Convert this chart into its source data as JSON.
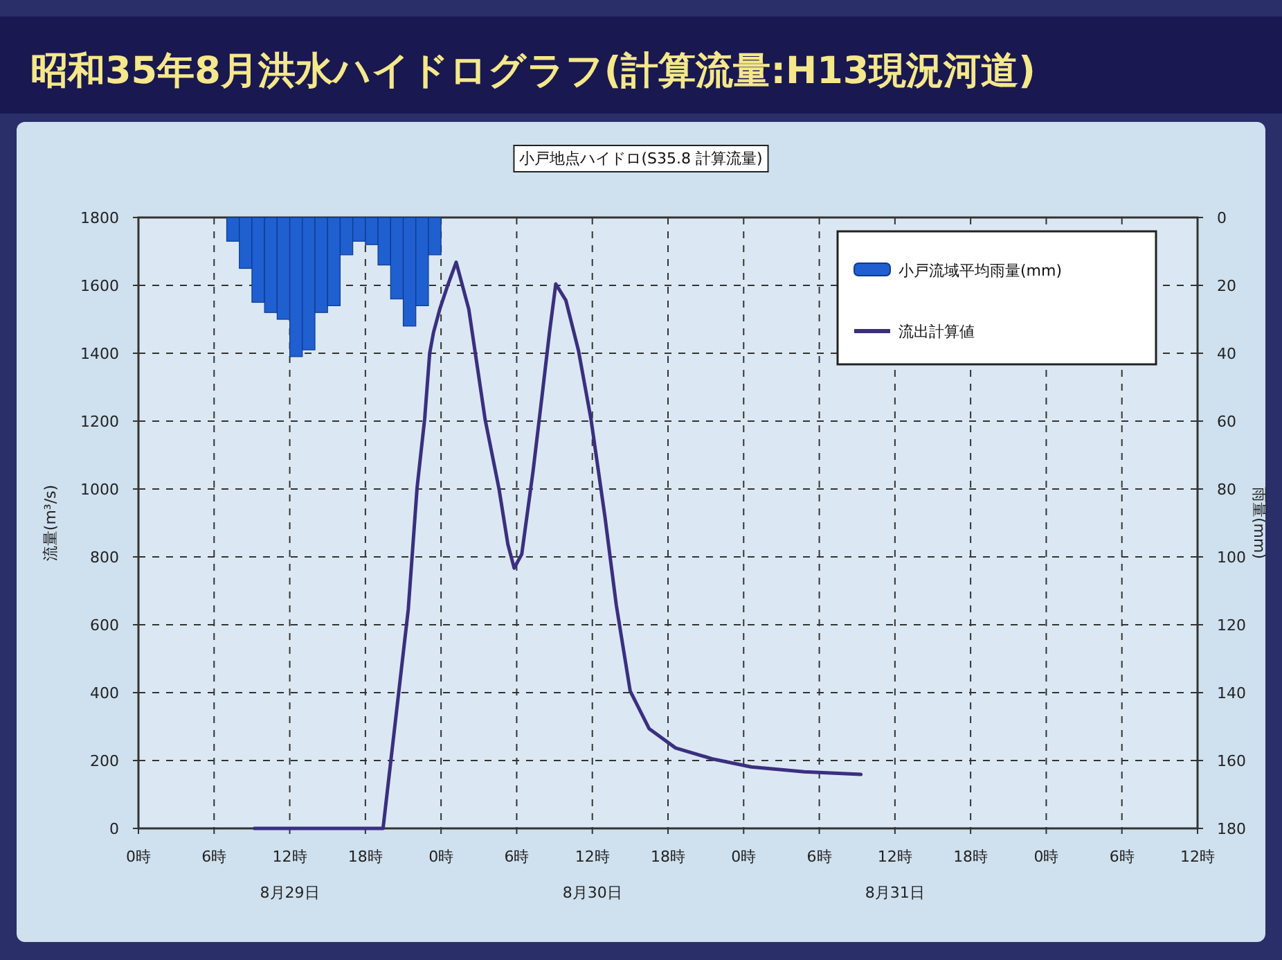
{
  "chart_data": {
    "type": "line",
    "title": "昭和35年8月洪水ハイドログラフ(計算流量:H13現況河道)",
    "subtitle": "小戸地点ハイドロ(S35.8 計算流量)",
    "ylabel": "流量(m³/s)",
    "y2label": "雨量(mm)",
    "xlim": [
      "--08-29T00:00",
      "--09-01T12:00"
    ],
    "xticks": [
      {
        "value": "--08-29T00:00",
        "label": "0時"
      },
      {
        "value": "--08-29T06:00",
        "label": "6時"
      },
      {
        "value": "--08-29T12:00",
        "label": "12時\n8月29日"
      },
      {
        "value": "--08-29T18:00",
        "label": "18時"
      },
      {
        "value": "--08-30T00:00",
        "label": "0時"
      },
      {
        "value": "--08-30T06:00",
        "label": "6時"
      },
      {
        "value": "--08-30T12:00",
        "label": "12時\n8月30日"
      },
      {
        "value": "--08-30T18:00",
        "label": "18時"
      },
      {
        "value": "--08-31T00:00",
        "label": "0時"
      },
      {
        "value": "--08-31T06:00",
        "label": "6時"
      },
      {
        "value": "--08-31T12:00",
        "label": "12時\n8月31日"
      },
      {
        "value": "--08-31T18:00",
        "label": "18時"
      },
      {
        "value": "--09-01T00:00",
        "label": "0時"
      },
      {
        "value": "--09-01T06:00",
        "label": "6時"
      },
      {
        "value": "--09-01T12:00",
        "label": "12時"
      }
    ],
    "ylim": [
      0,
      1800
    ],
    "yticks": [
      0,
      200,
      400,
      600,
      800,
      1000,
      1200,
      1400,
      1600,
      1800
    ],
    "y2lim": [
      180,
      0
    ],
    "y2ticks": [
      0,
      20,
      40,
      60,
      80,
      100,
      120,
      140,
      160,
      180
    ],
    "grid": true,
    "legend": "top right",
    "series": [
      {
        "name": "小戸流域平均雨量(mm)",
        "type": "bar",
        "axis": "y2",
        "color": "#1f5fd0",
        "x": [
          "--08-29T07:30",
          "--08-29T08:30",
          "--08-29T09:30",
          "--08-29T10:30",
          "--08-29T11:30",
          "--08-29T12:30",
          "--08-29T13:30",
          "--08-29T14:30",
          "--08-29T15:30",
          "--08-29T16:30",
          "--08-29T17:30",
          "--08-29T18:30",
          "--08-29T19:30",
          "--08-29T20:30",
          "--08-29T21:30",
          "--08-29T22:30",
          "--08-29T23:30"
        ],
        "values": [
          7,
          15,
          25,
          28,
          30,
          41,
          39,
          28,
          26,
          11,
          7,
          8,
          14,
          24,
          32,
          26,
          11
        ]
      },
      {
        "name": "流出計算値",
        "color": "#3b2f80",
        "x": [
          "--08-29T09:12",
          "--08-29T19:24",
          "--08-29T21:24",
          "--08-29T22:06",
          "--08-29T22:42",
          "--08-29T23:06",
          "--08-29T23:24",
          "--08-29T23:54",
          "--08-30T00:30",
          "--08-30T01:12",
          "--08-30T02:12",
          "--08-30T03:30",
          "--08-30T04:36",
          "--08-30T05:18",
          "--08-30T05:48",
          "--08-30T06:24",
          "--08-30T07:18",
          "--08-30T08:00",
          "--08-30T08:36",
          "--08-30T09:06",
          "--08-30T09:54",
          "--08-30T10:54",
          "--08-30T11:54",
          "--08-30T13:00",
          "--08-30T13:54",
          "--08-30T15:00",
          "--08-30T16:30",
          "--08-30T18:36",
          "--08-30T21:36",
          "--08-31T00:36",
          "--08-31T04:48",
          "--08-31T09:18"
        ],
        "values": [
          0,
          0,
          645,
          1004,
          1206,
          1400,
          1461,
          1530,
          1597,
          1668,
          1530,
          1204,
          1000,
          837,
          767,
          808,
          1053,
          1271,
          1461,
          1604,
          1556,
          1408,
          1204,
          918,
          658,
          405,
          294,
          237,
          204,
          181,
          167,
          159
        ]
      }
    ]
  }
}
